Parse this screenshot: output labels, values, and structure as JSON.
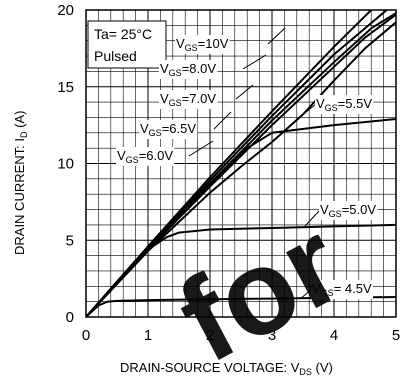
{
  "chart_data": {
    "type": "line",
    "xlabel": "DRAIN-SOURCE VOLTAGE: V",
    "xlabel_sub": "DS",
    "xlabel_unit": " (V)",
    "ylabel": "DRAIN CURRENT: I",
    "ylabel_sub": "D",
    "ylabel_unit": " (A)",
    "xlim": [
      0,
      5
    ],
    "ylim": [
      0,
      20
    ],
    "xticks": [
      0,
      1,
      2,
      3,
      4,
      5
    ],
    "yticks": [
      0,
      5,
      10,
      15,
      20
    ],
    "grid": true,
    "minor_grid_divisions": 5,
    "conditions": [
      "Ta= 25°C",
      "Pulsed"
    ],
    "watermark": "for",
    "series": [
      {
        "name": "V_GS=10V",
        "label_main": "V",
        "label_sub": "GS",
        "label_rest": "=10V",
        "x": [
          0,
          1,
          2,
          3,
          4,
          4.6
        ],
        "y": [
          0,
          4.6,
          9.1,
          13.4,
          17.6,
          20
        ]
      },
      {
        "name": "V_GS=8.0V",
        "label_main": "V",
        "label_sub": "GS",
        "label_rest": "=8.0V",
        "x": [
          0,
          1,
          2,
          3,
          4,
          4.85
        ],
        "y": [
          0,
          4.5,
          8.9,
          13.1,
          17.1,
          20
        ]
      },
      {
        "name": "V_GS=7.0V",
        "label_main": "V",
        "label_sub": "GS",
        "label_rest": "=7.0V",
        "x": [
          0,
          1,
          2,
          3,
          4,
          4.6,
          5
        ],
        "y": [
          0,
          4.45,
          8.7,
          12.8,
          16.6,
          18.8,
          19.8
        ]
      },
      {
        "name": "V_GS=6.5V",
        "label_main": "V",
        "label_sub": "GS",
        "label_rest": "=6.5V",
        "x": [
          0,
          1,
          2,
          3,
          4,
          4.5,
          5
        ],
        "y": [
          0,
          4.4,
          8.5,
          12.5,
          16.3,
          18.2,
          19.7
        ]
      },
      {
        "name": "V_GS=6.0V",
        "label_main": "V",
        "label_sub": "GS",
        "label_rest": "=6.0V",
        "x": [
          0,
          1,
          2,
          2.5,
          3,
          3.5,
          4,
          4.5,
          5
        ],
        "y": [
          0,
          4.3,
          8.1,
          9.8,
          11.4,
          13.2,
          15.4,
          17.5,
          19.2
        ]
      },
      {
        "name": "V_GS=5.5V",
        "label_main": "V",
        "label_sub": "GS",
        "label_rest": "=5.5V",
        "x": [
          0,
          0.5,
          1,
          1.5,
          2,
          2.3,
          2.6,
          3,
          4,
          5
        ],
        "y": [
          0,
          2.3,
          4.5,
          6.6,
          8.6,
          9.8,
          11.0,
          12.0,
          12.5,
          12.9
        ]
      },
      {
        "name": "V_GS=5.0V",
        "label_main": "V",
        "label_sub": "GS",
        "label_rest": "=5.0V",
        "x": [
          0,
          0.5,
          1,
          1.3,
          1.5,
          2,
          3,
          4,
          5
        ],
        "y": [
          0,
          2.3,
          4.4,
          5.2,
          5.5,
          5.7,
          5.8,
          5.9,
          6.0
        ]
      },
      {
        "name": "V_GS=4.5V",
        "label_main": "V",
        "label_sub": "GS",
        "label_rest": "= 4.5V",
        "x": [
          0,
          0.2,
          0.35,
          0.5,
          1,
          2,
          3,
          4,
          5
        ],
        "y": [
          0,
          0.75,
          1.0,
          1.05,
          1.1,
          1.15,
          1.2,
          1.25,
          1.3
        ]
      }
    ]
  }
}
